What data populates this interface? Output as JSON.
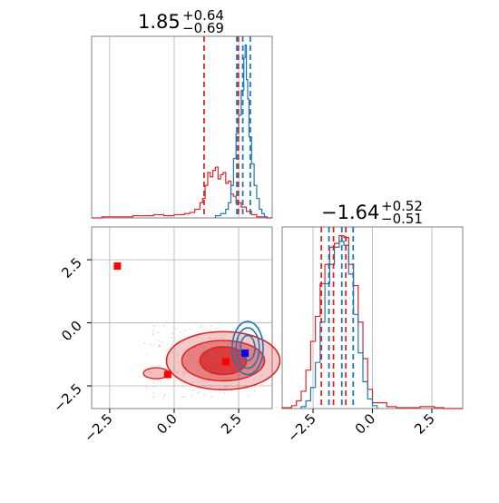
{
  "colors": {
    "red": "#d62728",
    "blue": "#1f77b4",
    "grid": "#b0b0b0",
    "marker_red": "#ff0000",
    "marker_blue": "#0000ff"
  },
  "chart_data": [
    {
      "type": "histogram",
      "panel": "top-left",
      "title": {
        "value": "1.85",
        "plus": "+0.64",
        "minus": "−0.69"
      },
      "xlim": [
        -3.2,
        3.8
      ],
      "grid": true,
      "series": [
        {
          "color": "#d62728",
          "bins": [
            -3.2,
            -2.8,
            -2.4,
            -2.0,
            -1.6,
            -1.2,
            -0.8,
            -0.4,
            0.0,
            0.2,
            0.4,
            0.6,
            0.8,
            1.0,
            1.1,
            1.2,
            1.3,
            1.4,
            1.5,
            1.6,
            1.7,
            1.8,
            1.9,
            2.0,
            2.1,
            2.2,
            2.3,
            2.4,
            2.6,
            2.8,
            3.0,
            3.2,
            3.6,
            3.8
          ],
          "counts": [
            0,
            1,
            1,
            1,
            2,
            2,
            3,
            2,
            3,
            3,
            4,
            5,
            8,
            14,
            18,
            30,
            42,
            38,
            44,
            47,
            36,
            40,
            42,
            32,
            34,
            22,
            20,
            14,
            10,
            6,
            3,
            1,
            0
          ]
        },
        {
          "color": "#1f77b4",
          "bins": [
            1.6,
            1.8,
            2.0,
            2.1,
            2.2,
            2.3,
            2.4,
            2.5,
            2.6,
            2.7,
            2.75,
            2.8,
            2.85,
            2.9,
            3.0,
            3.1,
            3.2,
            3.3,
            3.4,
            3.5,
            3.6
          ],
          "counts": [
            2,
            4,
            8,
            14,
            30,
            55,
            78,
            95,
            118,
            148,
            160,
            128,
            110,
            75,
            50,
            30,
            18,
            8,
            4,
            1
          ]
        }
      ],
      "quantile_lines": [
        {
          "color": "#d62728",
          "x": [
            1.16,
            2.49
          ]
        },
        {
          "color": "#1f77b4",
          "x": [
            2.43,
            2.66,
            2.95
          ]
        }
      ]
    },
    {
      "type": "histogram",
      "panel": "bottom-right",
      "title": {
        "value": "−1.64",
        "plus": "+0.52",
        "minus": "−0.51"
      },
      "xlim": [
        -3.8,
        3.8
      ],
      "xticks": [
        "−2.5",
        "0.0",
        "2.5"
      ],
      "xtick_values": [
        -2.5,
        0.0,
        2.5
      ],
      "grid": true,
      "series": [
        {
          "color": "#d62728",
          "bins": [
            -3.8,
            -3.4,
            -3.2,
            -3.0,
            -2.8,
            -2.6,
            -2.4,
            -2.2,
            -2.0,
            -1.8,
            -1.6,
            -1.4,
            -1.2,
            -1.0,
            -0.8,
            -0.6,
            -0.4,
            -0.2,
            0.0,
            0.6,
            1.0,
            2.0,
            2.6,
            3.0,
            3.8
          ],
          "counts": [
            1,
            3,
            8,
            18,
            40,
            70,
            96,
            130,
            150,
            168,
            172,
            180,
            178,
            150,
            128,
            90,
            52,
            20,
            6,
            2,
            1,
            2,
            1,
            0
          ]
        },
        {
          "color": "#1f77b4",
          "bins": [
            -3.0,
            -2.8,
            -2.6,
            -2.4,
            -2.2,
            -2.0,
            -1.8,
            -1.6,
            -1.4,
            -1.2,
            -1.0,
            -0.8,
            -0.6,
            -0.4,
            -0.2,
            0.0,
            0.2
          ],
          "counts": [
            2,
            8,
            22,
            48,
            90,
            130,
            150,
            168,
            174,
            170,
            140,
            98,
            58,
            28,
            10,
            3
          ]
        }
      ],
      "quantile_lines": [
        {
          "color": "#d62728",
          "x": [
            -2.15,
            -1.64,
            -1.12
          ]
        },
        {
          "color": "#1f77b4",
          "x": [
            -1.83,
            -1.29,
            -0.81
          ]
        }
      ]
    },
    {
      "type": "contour",
      "panel": "bottom-left",
      "xlim": [
        -3.2,
        3.8
      ],
      "ylim": [
        -3.4,
        3.8
      ],
      "xticks": [
        "−2.5",
        "0.0",
        "2.5"
      ],
      "xtick_values": [
        -2.5,
        0.0,
        2.5
      ],
      "yticks": [
        "2.5",
        "0.0",
        "−2.5"
      ],
      "ytick_values": [
        2.5,
        0.0,
        -2.5
      ],
      "grid": true,
      "contours": [
        {
          "color": "#d62728",
          "center": [
            1.9,
            -1.5
          ],
          "radii": [
            [
              2.2,
              1.15
            ],
            [
              1.6,
              0.8
            ],
            [
              0.9,
              0.55
            ]
          ]
        },
        {
          "color": "#1f77b4",
          "center": [
            2.85,
            -1.0
          ],
          "radii": [
            [
              0.6,
              1.05
            ],
            [
              0.45,
              0.8
            ],
            [
              0.28,
              0.5
            ]
          ]
        }
      ],
      "markers": [
        {
          "color": "#ff0000",
          "x": -2.2,
          "y": 2.25
        },
        {
          "color": "#ff0000",
          "x": -0.25,
          "y": -2.05
        },
        {
          "color": "#ff0000",
          "x": 2.0,
          "y": -1.55
        },
        {
          "color": "#0000ff",
          "x": 2.75,
          "y": -1.2
        }
      ]
    }
  ]
}
